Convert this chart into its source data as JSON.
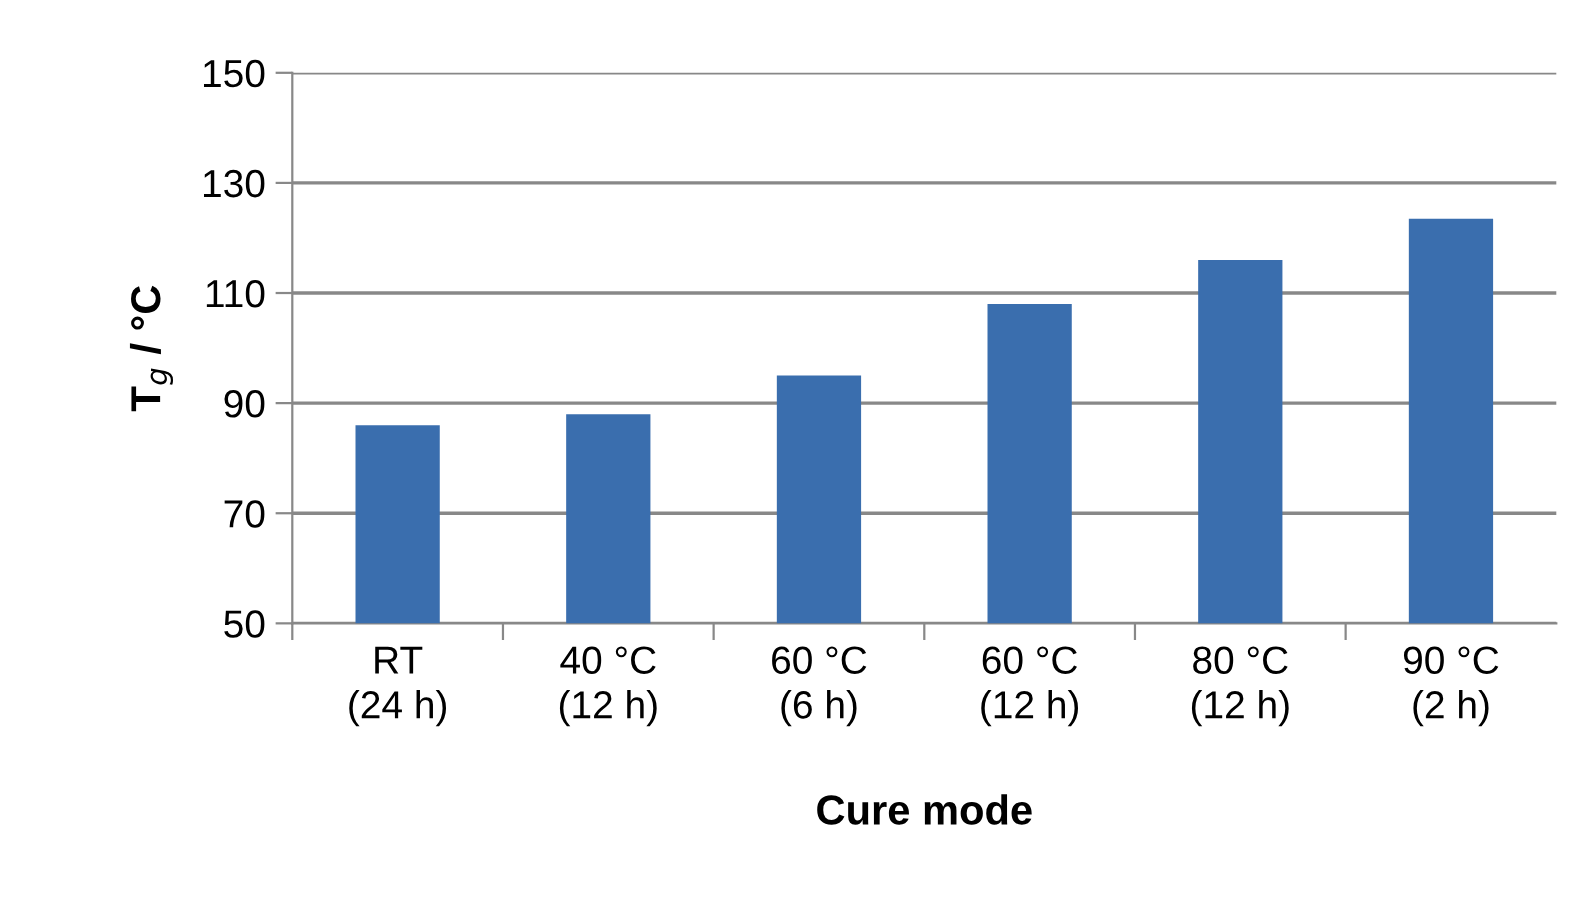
{
  "chart_data": {
    "type": "bar",
    "categories": [
      "RT\n(24 h)",
      "40 °C\n(12 h)",
      "60 °C\n(6 h)",
      "60 °C\n(12 h)",
      "80 °C\n(12 h)",
      "90 °C\n(2 h)"
    ],
    "values": [
      86,
      88,
      95,
      108,
      116,
      123.5
    ],
    "color": "#3a6eae",
    "xlabel": "Cure mode",
    "ylabel": "T$_{g}$ / °C",
    "ylim": [
      50,
      150
    ],
    "yticks": [
      50,
      70,
      90,
      110,
      130,
      150
    ],
    "grid": "y",
    "legend": false
  }
}
